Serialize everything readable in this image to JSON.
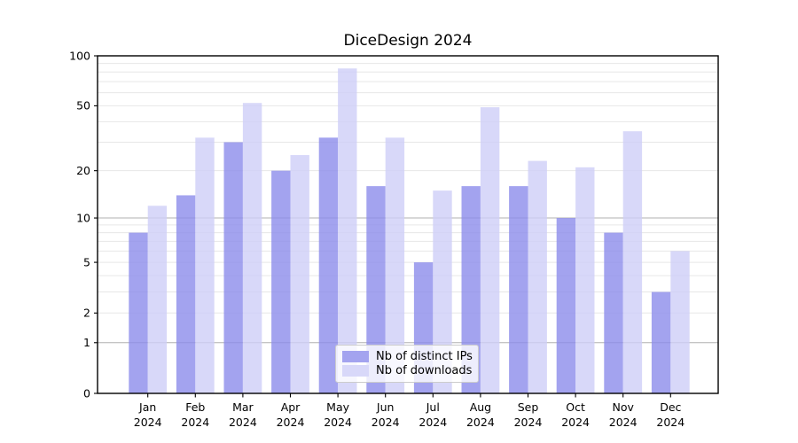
{
  "chart_data": {
    "type": "bar",
    "title": "DiceDesign 2024",
    "categories": [
      "Jan",
      "Feb",
      "Mar",
      "Apr",
      "May",
      "Jun",
      "Jul",
      "Aug",
      "Sep",
      "Oct",
      "Nov",
      "Dec"
    ],
    "year_label": "2024",
    "series": [
      {
        "key": "distinct-ips",
        "name": "Nb of distinct IPs",
        "color": "#a3a3ef",
        "values": [
          8,
          14,
          30,
          20,
          32,
          16,
          5,
          16,
          16,
          10,
          8,
          3
        ]
      },
      {
        "key": "downloads",
        "name": "Nb of downloads",
        "color": "#d8d8f9",
        "values": [
          12,
          32,
          52,
          25,
          84,
          32,
          15,
          49,
          23,
          21,
          35,
          6
        ]
      }
    ],
    "yscale": "log1p",
    "ylim": [
      0,
      100
    ],
    "xlabel": "",
    "ylabel": "",
    "ytick_labels": [
      "100",
      "50",
      "20",
      "10",
      "5",
      "2",
      "1",
      "0"
    ],
    "ytick_values": [
      100,
      50,
      20,
      10,
      5,
      2,
      1,
      0
    ],
    "minor_gridlines": [
      2,
      3,
      4,
      5,
      6,
      7,
      8,
      9,
      20,
      30,
      40,
      50,
      60,
      70,
      80,
      90
    ],
    "major_gridlines": [
      1,
      10
    ],
    "grid": true,
    "legend_position": "lower center",
    "bar_alpha": 0.8,
    "colors": {
      "grid_minor": "#e7e7e7",
      "grid_major": "#b0b0b0",
      "axis": "#000000",
      "legend_border": "#cccccc"
    }
  }
}
